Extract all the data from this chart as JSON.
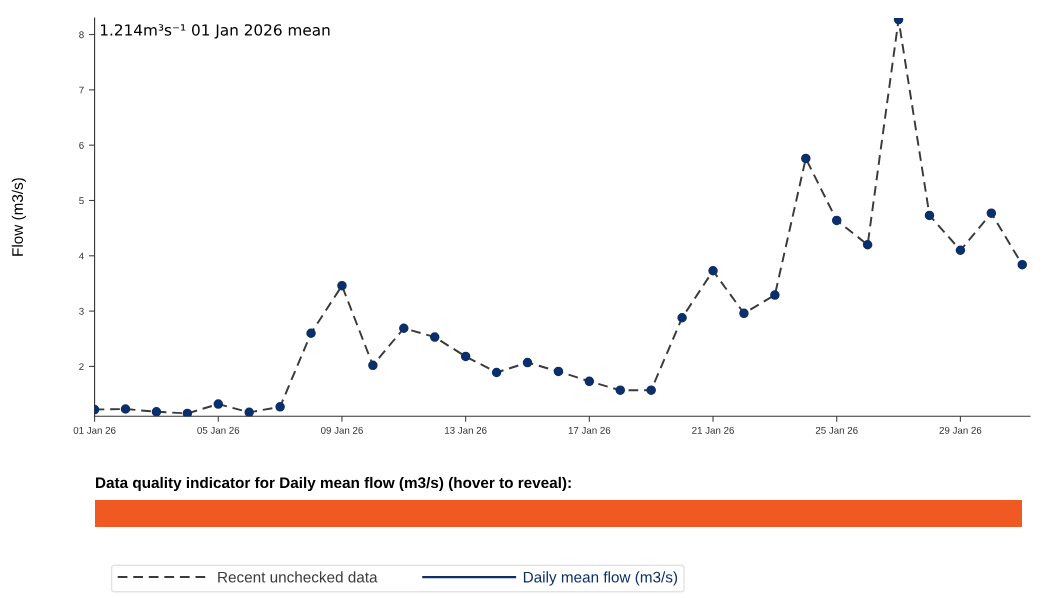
{
  "chart_data": {
    "type": "line",
    "ylabel": "Flow (m3/s)",
    "annotations": [
      "1.214m³s⁻¹ 01 Jan 2026 mean",
      "Data quality indicator for Daily mean flow (m3/s) (hover to reveal):"
    ],
    "x": [
      "2026-01-01",
      "2026-01-02",
      "2026-01-03",
      "2026-01-04",
      "2026-01-05",
      "2026-01-06",
      "2026-01-07",
      "2026-01-08",
      "2026-01-09",
      "2026-01-10",
      "2026-01-11",
      "2026-01-12",
      "2026-01-13",
      "2026-01-14",
      "2026-01-15",
      "2026-01-16",
      "2026-01-17",
      "2026-01-18",
      "2026-01-19",
      "2026-01-20",
      "2026-01-21",
      "2026-01-22",
      "2026-01-23",
      "2026-01-24",
      "2026-01-25",
      "2026-01-26",
      "2026-01-27",
      "2026-01-28",
      "2026-01-29",
      "2026-01-30",
      "2026-01-31"
    ],
    "series": [
      {
        "name": "Recent unchecked data",
        "color": "#3a3a3a",
        "line_style": "dashed",
        "marker": "none",
        "values": [
          1.22,
          1.23,
          1.18,
          1.15,
          1.32,
          1.17,
          1.27,
          2.6,
          3.46,
          2.02,
          2.69,
          2.53,
          2.18,
          1.89,
          2.07,
          1.91,
          1.73,
          1.57,
          1.57,
          2.88,
          3.73,
          2.96,
          3.29,
          5.76,
          4.64,
          4.2,
          8.27,
          4.73,
          4.1,
          4.77,
          3.84
        ]
      },
      {
        "name": "Daily mean flow (m3/s)",
        "type": "scatter",
        "color": "#0b2f6b",
        "marker": "circle",
        "values": [
          1.22,
          1.23,
          1.18,
          1.15,
          1.32,
          1.17,
          1.27,
          2.6,
          3.46,
          2.02,
          2.69,
          2.53,
          2.18,
          1.89,
          2.07,
          1.91,
          1.73,
          1.57,
          1.57,
          2.88,
          3.73,
          2.96,
          3.29,
          5.76,
          4.64,
          4.2,
          8.27,
          4.73,
          4.1,
          4.77,
          3.84
        ]
      }
    ],
    "xlim": [
      "2026-01-01",
      "2026-01-31T06:00"
    ],
    "xticks": [
      {
        "value": "2026-01-01",
        "label": "01 Jan 26"
      },
      {
        "value": "2026-01-05",
        "label": "05 Jan 26"
      },
      {
        "value": "2026-01-09",
        "label": "09 Jan 26"
      },
      {
        "value": "2026-01-13",
        "label": "13 Jan 26"
      },
      {
        "value": "2026-01-17",
        "label": "17 Jan 26"
      },
      {
        "value": "2026-01-21",
        "label": "21 Jan 26"
      },
      {
        "value": "2026-01-25",
        "label": "25 Jan 26"
      },
      {
        "value": "2026-01-29",
        "label": "29 Jan 26"
      }
    ],
    "ylim": [
      1.1,
      8.3
    ],
    "yticks": [
      2,
      3,
      4,
      5,
      6,
      7,
      8
    ],
    "grid": false,
    "legend": "bottom"
  }
}
